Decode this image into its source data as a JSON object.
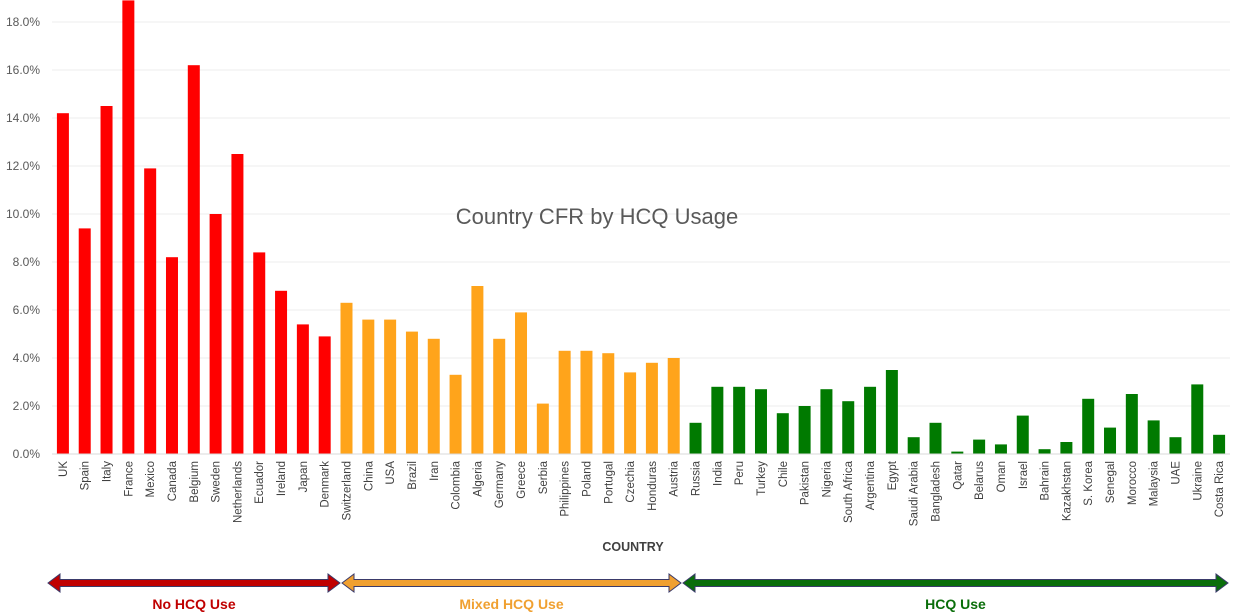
{
  "chart_data": {
    "type": "bar",
    "title": "Country CFR by HCQ Usage",
    "xlabel": "COUNTRY",
    "ylabel": "",
    "ylim": [
      0,
      0.18
    ],
    "yticks": [
      "0.0%",
      "2.0%",
      "4.0%",
      "6.0%",
      "8.0%",
      "10.0%",
      "12.0%",
      "14.0%",
      "16.0%",
      "18.0%"
    ],
    "grid": true,
    "categories": [
      "UK",
      "Spain",
      "Italy",
      "France",
      "Mexico",
      "Canada",
      "Belgium",
      "Sweden",
      "Netherlands",
      "Ecuador",
      "Ireland",
      "Japan",
      "Denmark",
      "Switzerland",
      "China",
      "USA",
      "Brazil",
      "Iran",
      "Colombia",
      "Algeria",
      "Germany",
      "Greece",
      "Serbia",
      "Philippines",
      "Poland",
      "Portugal",
      "Czechia",
      "Honduras",
      "Austria",
      "Russia",
      "India",
      "Peru",
      "Turkey",
      "Chile",
      "Pakistan",
      "Nigeria",
      "South Africa",
      "Argentina",
      "Egypt",
      "Saudi Arabia",
      "Bangladesh",
      "Qatar",
      "Belarus",
      "Oman",
      "Israel",
      "Bahrain",
      "Kazakhstan",
      "S. Korea",
      "Senegal",
      "Morocco",
      "Malaysia",
      "UAE",
      "Ukraine",
      "Costa Rica"
    ],
    "values": [
      0.142,
      0.094,
      0.145,
      0.189,
      0.119,
      0.082,
      0.162,
      0.1,
      0.125,
      0.084,
      0.068,
      0.054,
      0.049,
      0.063,
      0.056,
      0.056,
      0.051,
      0.048,
      0.033,
      0.07,
      0.048,
      0.059,
      0.021,
      0.043,
      0.043,
      0.042,
      0.034,
      0.038,
      0.04,
      0.013,
      0.028,
      0.028,
      0.027,
      0.017,
      0.02,
      0.027,
      0.022,
      0.028,
      0.035,
      0.007,
      0.013,
      0.001,
      0.006,
      0.004,
      0.016,
      0.002,
      0.005,
      0.023,
      0.011,
      0.025,
      0.014,
      0.007,
      0.029,
      0.008
    ],
    "groups": [
      {
        "name": "No HCQ Use",
        "color": "#ff0000",
        "arrow_color": "#c00000",
        "start": 0,
        "end": 12
      },
      {
        "name": "Mixed HCQ Use",
        "color": "#ffa41b",
        "arrow_color": "#f0a030",
        "start": 13,
        "end": 28
      },
      {
        "name": "HCQ Use",
        "color": "#007a00",
        "arrow_color": "#0a6e0a",
        "start": 29,
        "end": 53
      }
    ]
  }
}
